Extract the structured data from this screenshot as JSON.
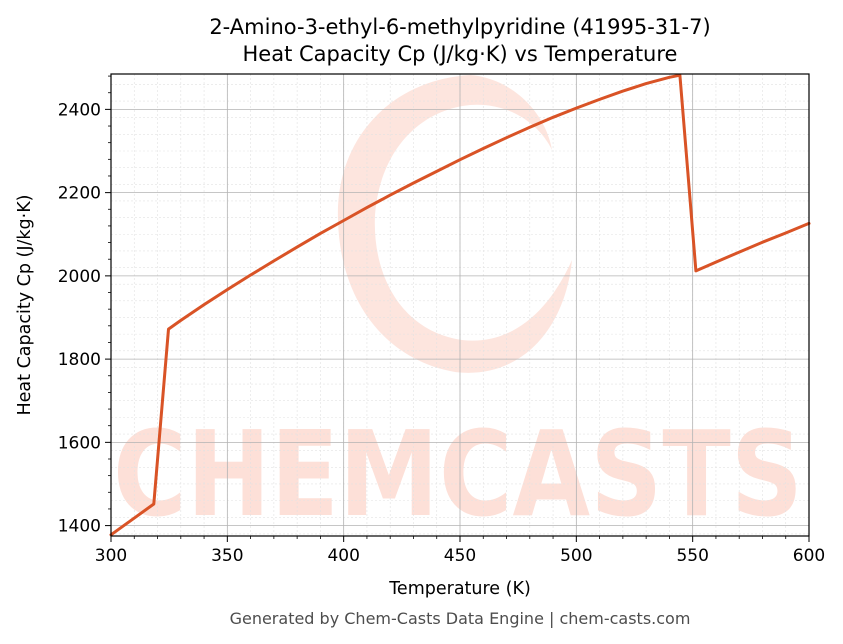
{
  "chart_data": {
    "type": "line",
    "title": [
      "2-Amino-3-ethyl-6-methylpyridine (41995-31-7)",
      "Heat Capacity Cp (J/kg·K) vs Temperature"
    ],
    "xlabel": "Temperature (K)",
    "ylabel": "Heat Capacity Cp (J/kg·K)",
    "xlim": [
      300,
      600
    ],
    "ylim": [
      1375,
      2485
    ],
    "xticks": [
      300,
      350,
      400,
      450,
      500,
      550,
      600
    ],
    "yticks": [
      1400,
      1600,
      1800,
      2000,
      2200,
      2400
    ],
    "grid": true,
    "legend": "none",
    "line_color": "#d95326",
    "series": [
      {
        "x": [
          300,
          318.4,
          324.7,
          330,
          340,
          350,
          360,
          370,
          380,
          390,
          400,
          410,
          420,
          430,
          440,
          450,
          460,
          470,
          480,
          490,
          500,
          510,
          520,
          530,
          540,
          544.5,
          551.4,
          560,
          570,
          580,
          590,
          600
        ],
        "values": [
          1378,
          1452,
          1872,
          1893,
          1931,
          1967,
          2002,
          2036,
          2069,
          2102,
          2133,
          2164,
          2194,
          2223,
          2251,
          2279,
          2306,
          2332,
          2357,
          2381,
          2403,
          2424,
          2444,
          2462,
          2477,
          2482,
          2012,
          2033,
          2057,
          2081,
          2103,
          2126
        ]
      }
    ]
  },
  "watermark": {
    "text": "CHEMCASTS",
    "color": "#fde0d8"
  },
  "footer": "Generated by Chem-Casts Data Engine | chem-casts.com"
}
